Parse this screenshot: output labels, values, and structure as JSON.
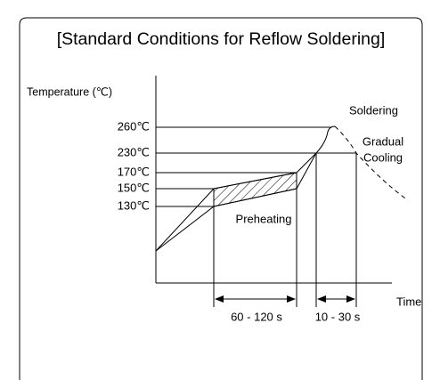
{
  "header": {
    "title": "[Standard Conditions for Reflow Soldering]"
  },
  "axes": {
    "y_label": "Temperature (℃)",
    "x_label": "Time"
  },
  "temperatures": [
    "260℃",
    "230℃",
    "170℃",
    "150℃",
    "130℃"
  ],
  "annotations": {
    "soldering": "Soldering",
    "cooling": [
      "Gradual",
      "Cooling"
    ],
    "preheating": "Preheating"
  },
  "durations": [
    "60 - 120 s",
    "10 - 30 s"
  ]
}
